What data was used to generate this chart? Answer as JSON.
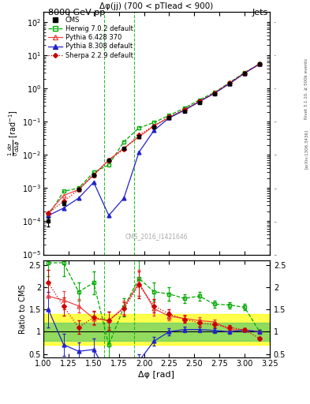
{
  "title_top": "8000 GeV pp",
  "title_right": "Jets",
  "plot_title": "Δφ(jj) (700 < pTlead < 900)",
  "ylabel_main": "$\\frac{1}{\\sigma}\\frac{d\\sigma}{d\\Delta\\phi}$ [rad$^{-1}$]",
  "ylabel_ratio": "Ratio to CMS",
  "xlabel": "Δφ [rad]",
  "watermark": "CMS_2016_I1421646",
  "right_label": "Rivet 3.1.10, ≥ 500k events",
  "right_label2": "[arXiv:1306.3436]",
  "xlim": [
    1.0,
    3.25
  ],
  "ylim_main": [
    1e-05,
    200.0
  ],
  "ylim_ratio": [
    0.42,
    2.6
  ],
  "vline_x1": 1.6,
  "vline_x2": 1.9,
  "cms_x": [
    1.05,
    1.2,
    1.35,
    1.5,
    1.65,
    1.8,
    1.95,
    2.1,
    2.25,
    2.4,
    2.55,
    2.7,
    2.85,
    3.0,
    3.15
  ],
  "cms_y": [
    0.0001,
    0.00035,
    0.0009,
    0.0025,
    0.007,
    0.016,
    0.035,
    0.07,
    0.13,
    0.21,
    0.38,
    0.7,
    1.4,
    2.8,
    5.5
  ],
  "cms_yerr": [
    3e-05,
    5e-05,
    0.0001,
    0.0002,
    0.0005,
    0.001,
    0.002,
    0.004,
    0.007,
    0.01,
    0.02,
    0.03,
    0.06,
    0.12,
    0.25
  ],
  "herwig_x": [
    1.05,
    1.2,
    1.35,
    1.5,
    1.65,
    1.8,
    1.95,
    2.1,
    2.25,
    2.4,
    2.55,
    2.7,
    2.85,
    3.0,
    3.15
  ],
  "herwig_y": [
    0.00015,
    0.0008,
    0.001,
    0.003,
    0.005,
    0.025,
    0.065,
    0.095,
    0.155,
    0.255,
    0.455,
    0.755,
    1.52,
    3.02,
    5.52
  ],
  "pythia6_x": [
    1.05,
    1.2,
    1.35,
    1.5,
    1.65,
    1.8,
    1.95,
    2.1,
    2.25,
    2.4,
    2.55,
    2.7,
    2.85,
    3.0,
    3.15
  ],
  "pythia6_y": [
    0.00018,
    0.0006,
    0.0009,
    0.0025,
    0.007,
    0.016,
    0.035,
    0.075,
    0.135,
    0.225,
    0.405,
    0.725,
    1.42,
    2.92,
    5.52
  ],
  "pythia8_x": [
    1.05,
    1.2,
    1.35,
    1.5,
    1.65,
    1.8,
    1.95,
    2.1,
    2.25,
    2.4,
    2.55,
    2.7,
    2.85,
    3.0,
    3.15
  ],
  "pythia8_y": [
    0.00015,
    0.00025,
    0.0005,
    0.0015,
    0.00015,
    0.0005,
    0.012,
    0.055,
    0.13,
    0.22,
    0.4,
    0.72,
    1.4,
    2.9,
    5.5
  ],
  "sherpa_x": [
    1.05,
    1.2,
    1.35,
    1.5,
    1.65,
    1.8,
    1.95,
    2.1,
    2.25,
    2.4,
    2.55,
    2.7,
    2.85,
    3.0,
    3.15
  ],
  "sherpa_y": [
    0.00018,
    0.0004,
    0.0009,
    0.0025,
    0.007,
    0.015,
    0.04,
    0.075,
    0.14,
    0.23,
    0.41,
    0.73,
    1.45,
    2.9,
    5.5
  ],
  "herwig_ratio": [
    2.55,
    2.55,
    1.9,
    2.1,
    0.7,
    1.55,
    2.2,
    1.9,
    1.85,
    1.75,
    1.8,
    1.62,
    1.6,
    1.55,
    1.0
  ],
  "pythia6_ratio": [
    1.8,
    1.71,
    1.58,
    1.3,
    1.25,
    1.55,
    2.1,
    1.52,
    1.35,
    1.3,
    1.25,
    1.22,
    1.05,
    1.04,
    1.0
  ],
  "pythia8_ratio": [
    1.5,
    0.71,
    0.56,
    0.6,
    0.021,
    0.031,
    0.34,
    0.79,
    1.0,
    1.05,
    1.05,
    1.03,
    1.0,
    1.04,
    1.0
  ],
  "sherpa_ratio": [
    2.1,
    1.57,
    1.1,
    1.32,
    1.25,
    1.52,
    2.05,
    1.58,
    1.4,
    1.28,
    1.2,
    1.16,
    1.1,
    1.04,
    0.85
  ],
  "herwig_ratio_err": [
    0.3,
    0.3,
    0.2,
    0.25,
    0.4,
    0.2,
    0.4,
    0.2,
    0.15,
    0.1,
    0.1,
    0.08,
    0.07,
    0.07,
    0.05
  ],
  "pythia6_ratio_err": [
    0.3,
    0.2,
    0.15,
    0.15,
    0.2,
    0.15,
    0.3,
    0.15,
    0.1,
    0.08,
    0.08,
    0.06,
    0.05,
    0.04,
    0.04
  ],
  "pythia8_ratio_err": [
    0.4,
    0.25,
    0.2,
    0.25,
    0.3,
    0.2,
    0.15,
    0.1,
    0.08,
    0.06,
    0.06,
    0.05,
    0.04,
    0.04,
    0.04
  ],
  "sherpa_ratio_err": [
    0.3,
    0.2,
    0.15,
    0.15,
    0.2,
    0.15,
    0.3,
    0.15,
    0.1,
    0.08,
    0.08,
    0.06,
    0.05,
    0.04,
    0.04
  ],
  "cms_color": "black",
  "herwig_color": "#00aa00",
  "pythia6_color": "#ee4444",
  "pythia8_color": "#2222cc",
  "sherpa_color": "#cc0000",
  "band_yellow_lo": 0.7,
  "band_yellow_hi": 1.4,
  "band_green_lo": 0.8,
  "band_green_hi": 1.2,
  "ratio_yticks": [
    0.5,
    1.0,
    1.5,
    2.0,
    2.5
  ],
  "ratio_yticklabels": [
    "0.5",
    "1",
    "1.5",
    "2",
    "2.5"
  ]
}
